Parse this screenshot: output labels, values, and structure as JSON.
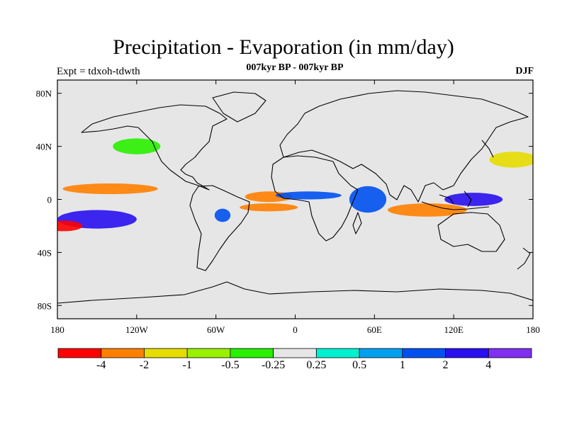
{
  "title": "Precipitation - Evaporation (in mm/day)",
  "left_label": "Expt = tdxoh-tdwth",
  "center_label": "007kyr BP - 007kyr BP",
  "right_label": "DJF",
  "map": {
    "lon_range": [
      -180,
      180
    ],
    "lat_range": [
      -90,
      90
    ],
    "x_ticks": [
      "180",
      "120W",
      "60W",
      "0",
      "60E",
      "120E",
      "180"
    ],
    "y_ticks": [
      "80N",
      "40N",
      "0",
      "40S",
      "80S"
    ],
    "background_color": "#e6e6e6"
  },
  "colorbar": {
    "labels": [
      "-4",
      "-2",
      "-1",
      "-0.5",
      "-0.25",
      "0.25",
      "0.5",
      "1",
      "2",
      "4"
    ],
    "colors": [
      "#ff0000",
      "#ff8000",
      "#e6dc00",
      "#9af000",
      "#28f000",
      "#e6e6e6",
      "#00f0d0",
      "#00a0f0",
      "#0050f0",
      "#2810f0",
      "#8030f0"
    ]
  },
  "fields": [
    {
      "lon": -150,
      "lat": -15,
      "rx": 30,
      "ry": 7,
      "color": "#2810f0"
    },
    {
      "lon": -175,
      "lat": -20,
      "rx": 14,
      "ry": 4,
      "color": "#ff0000"
    },
    {
      "lon": -140,
      "lat": 8,
      "rx": 36,
      "ry": 4,
      "color": "#ff8000"
    },
    {
      "lon": -120,
      "lat": 40,
      "rx": 18,
      "ry": 6,
      "color": "#28f000"
    },
    {
      "lon": -20,
      "lat": 2,
      "rx": 18,
      "ry": 4,
      "color": "#ff8000"
    },
    {
      "lon": -20,
      "lat": -6,
      "rx": 22,
      "ry": 3,
      "color": "#ff8000"
    },
    {
      "lon": -55,
      "lat": -12,
      "rx": 6,
      "ry": 5,
      "color": "#0050f0"
    },
    {
      "lon": 10,
      "lat": 3,
      "rx": 25,
      "ry": 3,
      "color": "#0050f0"
    },
    {
      "lon": 55,
      "lat": 0,
      "rx": 14,
      "ry": 10,
      "color": "#0050f0"
    },
    {
      "lon": 100,
      "lat": -8,
      "rx": 30,
      "ry": 5,
      "color": "#ff8000"
    },
    {
      "lon": 135,
      "lat": 0,
      "rx": 22,
      "ry": 5,
      "color": "#2810f0"
    },
    {
      "lon": 165,
      "lat": 30,
      "rx": 18,
      "ry": 6,
      "color": "#e6dc00"
    }
  ]
}
